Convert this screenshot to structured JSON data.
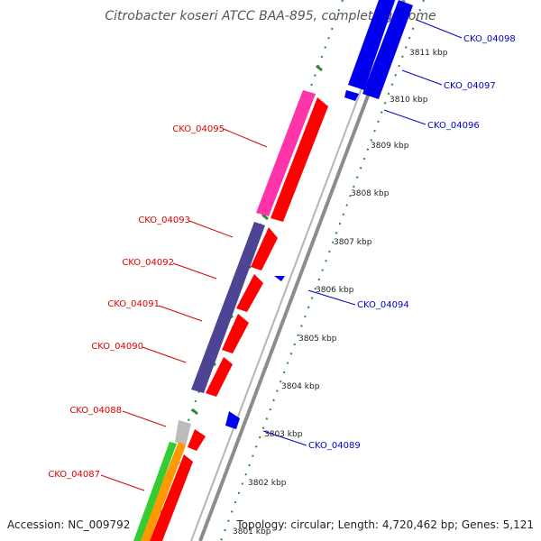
{
  "title": "Citrobacter koseri ATCC BAA-895, complete genome",
  "footer": {
    "accession": "Accession: NC_009792",
    "topology": "Topology: circular; Length: 4,720,462 bp; Genes: 5,121"
  },
  "colors": {
    "forward_label": "#dd0000",
    "reverse_label": "#0000cc",
    "tick": "#228b22",
    "backbone": "#888888"
  },
  "kbp_labels": [
    "3811 kbp",
    "3810 kbp",
    "3809 kbp",
    "3808 kbp",
    "3807 kbp",
    "3806 kbp",
    "3805 kbp",
    "3804 kbp",
    "3803 kbp",
    "3802 kbp",
    "3801 kbp"
  ],
  "gene_labels_left": [
    "CKO_04095",
    "CKO_04093",
    "CKO_04092",
    "CKO_04091",
    "CKO_04090",
    "CKO_04088",
    "CKO_04087"
  ],
  "gene_labels_right": [
    "CKO_04098",
    "CKO_04097",
    "CKO_04096",
    "CKO_04094",
    "CKO_04089"
  ]
}
